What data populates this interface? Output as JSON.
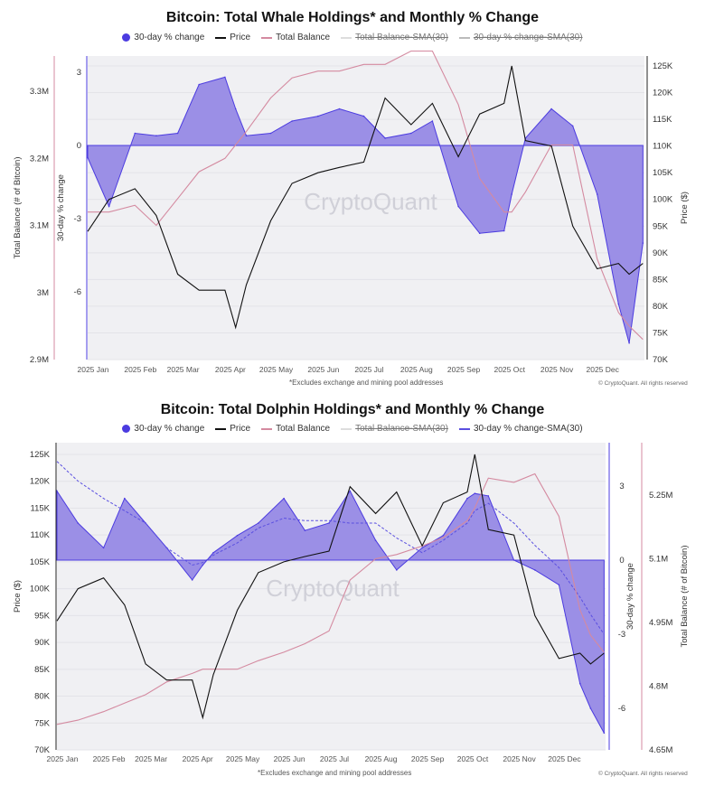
{
  "colors": {
    "pct_fill": "#9b8fe6",
    "pct_line": "#4b3be0",
    "price": "#111111",
    "balance": "#d48aa0",
    "sma": "#5a4fe0",
    "bg": "#f0f0f3"
  },
  "watermark": "CryptoQuant",
  "chart_data": [
    {
      "type": "area+line",
      "title": "Bitcoin: Total Whale Holdings* and Monthly % Change",
      "legend": [
        "30-day % change",
        "Price",
        "Total Balance",
        "Total Balance-SMA(30)",
        "30-day % change-SMA(30)"
      ],
      "legend_hidden": [
        "Total Balance-SMA(30)",
        "30-day % change-SMA(30)"
      ],
      "footnote": "*Excludes exchange and mining pool addresses",
      "copyright": "© CryptoQuant. All rights reserved",
      "x_ticks": [
        "2025 Jan",
        "2025 Feb",
        "2025 Mar",
        "2025 Apr",
        "2025 May",
        "2025 Jun",
        "2025 Jul",
        "2025 Aug",
        "2025 Sep",
        "2025 Oct",
        "2025 Nov",
        "2025 Dec"
      ],
      "pct_axis": {
        "label": "30-day % change",
        "ticks": [
          "3",
          "0",
          "-3",
          "-6"
        ],
        "range": [
          -8.6,
          3.7
        ]
      },
      "price_axis": {
        "label": "Price ($)",
        "ticks": [
          "125K",
          "120K",
          "115K",
          "110K",
          "105K",
          "100K",
          "95K",
          "90K",
          "85K",
          "80K",
          "75K",
          "70K"
        ],
        "range": [
          70000,
          125900
        ]
      },
      "balance_axis": {
        "label": "Total Balance (# of Bitcoin)",
        "ticks": [
          "3.3M",
          "3.2M",
          "3.1M",
          "3M",
          "2.9M"
        ],
        "range": [
          2900000,
          3340000
        ]
      },
      "dates": [
        "2025-01-01",
        "2025-01-15",
        "2025-02-01",
        "2025-02-15",
        "2025-03-01",
        "2025-03-15",
        "2025-04-01",
        "2025-04-08",
        "2025-04-15",
        "2025-05-01",
        "2025-05-15",
        "2025-06-01",
        "2025-06-15",
        "2025-07-01",
        "2025-07-15",
        "2025-08-01",
        "2025-08-15",
        "2025-09-01",
        "2025-09-15",
        "2025-10-01",
        "2025-10-06",
        "2025-10-15",
        "2025-11-01",
        "2025-11-15",
        "2025-12-01",
        "2025-12-15",
        "2025-12-22",
        "2025-12-31"
      ],
      "pct_change": [
        -0.5,
        -2.5,
        0.5,
        0.4,
        0.5,
        2.5,
        2.8,
        1.5,
        0.4,
        0.5,
        1,
        1.2,
        1.5,
        1.2,
        0.3,
        0.5,
        1,
        -2.5,
        -3.6,
        -3.5,
        -2,
        0.3,
        1.5,
        0.8,
        -2,
        -6.5,
        -8.1,
        -4
      ],
      "price": [
        94000,
        100000,
        102000,
        97000,
        86000,
        83000,
        83000,
        76000,
        84000,
        96000,
        103000,
        105000,
        106000,
        107000,
        119000,
        114000,
        118000,
        108000,
        116000,
        118000,
        125000,
        111000,
        110000,
        95000,
        87000,
        88000,
        86000,
        88000
      ],
      "total_balance": [
        3120000,
        3120000,
        3130000,
        3100000,
        3140000,
        3180000,
        3200000,
        3220000,
        3240000,
        3290000,
        3320000,
        3330000,
        3330000,
        3340000,
        3340000,
        3360000,
        3360000,
        3280000,
        3170000,
        3120000,
        3120000,
        3150000,
        3220000,
        3220000,
        3050000,
        2970000,
        2950000,
        2930000
      ]
    },
    {
      "type": "area+line",
      "title": "Bitcoin: Total Dolphin Holdings* and Monthly % Change",
      "legend": [
        "30-day % change",
        "Price",
        "Total Balance",
        "Total Balance-SMA(30)",
        "30-day % change-SMA(30)"
      ],
      "legend_hidden": [
        "Total Balance-SMA(30)"
      ],
      "footnote": "*Excludes exchange and mining pool addresses",
      "copyright": "© CryptoQuant. All rights reserved",
      "x_ticks": [
        "2025 Jan",
        "2025 Feb",
        "2025 Mar",
        "2025 Apr",
        "2025 May",
        "2025 Jun",
        "2025 Jul",
        "2025 Aug",
        "2025 Sep",
        "2025 Oct",
        "2025 Nov",
        "2025 Dec"
      ],
      "pct_axis": {
        "label": "30-day % change",
        "ticks": [
          "3",
          "0",
          "-3",
          "-6"
        ],
        "range": [
          -7.6,
          4.8
        ]
      },
      "price_axis": {
        "label": "Price ($)",
        "ticks": [
          "125K",
          "120K",
          "115K",
          "110K",
          "105K",
          "100K",
          "95K",
          "90K",
          "85K",
          "80K",
          "75K",
          "70K"
        ],
        "range": [
          70000,
          127000
        ]
      },
      "balance_axis": {
        "label": "Total Balance (# of Bitcoin)",
        "ticks": [
          "5.25M",
          "5.1M",
          "4.95M",
          "4.8M",
          "4.65M"
        ],
        "range": [
          4650000,
          5250000
        ]
      },
      "dates": [
        "2025-01-01",
        "2025-01-15",
        "2025-02-01",
        "2025-02-15",
        "2025-03-01",
        "2025-03-15",
        "2025-04-01",
        "2025-04-08",
        "2025-04-15",
        "2025-05-01",
        "2025-05-15",
        "2025-06-01",
        "2025-06-15",
        "2025-07-01",
        "2025-07-15",
        "2025-08-01",
        "2025-08-15",
        "2025-09-01",
        "2025-09-15",
        "2025-10-01",
        "2025-10-06",
        "2025-10-15",
        "2025-11-01",
        "2025-11-15",
        "2025-12-01",
        "2025-12-15",
        "2025-12-22",
        "2025-12-31"
      ],
      "pct_change": [
        2.8,
        1.5,
        0.5,
        2.5,
        1.5,
        0.5,
        -0.8,
        -0.2,
        0.3,
        1,
        1.5,
        2.5,
        1.2,
        1.5,
        2.8,
        0.8,
        -0.4,
        0.5,
        1,
        2.5,
        2.7,
        2.6,
        0,
        -0.4,
        -1,
        -5,
        -6,
        -7
      ],
      "pct_change_sma": [
        4,
        3.2,
        2.5,
        2,
        1.5,
        0.5,
        -0.2,
        -0.1,
        0.2,
        0.7,
        1.3,
        1.7,
        1.6,
        1.6,
        1.5,
        1.5,
        0.9,
        0.3,
        0.8,
        1.5,
        2,
        2.3,
        1.5,
        0.6,
        -0.3,
        -1.5,
        -2.2,
        -3
      ],
      "price": [
        94000,
        100000,
        102000,
        97000,
        86000,
        83000,
        83000,
        76000,
        84000,
        96000,
        103000,
        105000,
        106000,
        107000,
        119000,
        114000,
        118000,
        108000,
        116000,
        118000,
        125000,
        111000,
        110000,
        95000,
        87000,
        88000,
        86000,
        88000
      ],
      "total_balance": [
        4710000,
        4720000,
        4740000,
        4760000,
        4780000,
        4810000,
        4830000,
        4840000,
        4840000,
        4840000,
        4860000,
        4880000,
        4900000,
        4930000,
        5050000,
        5100000,
        5110000,
        5130000,
        5150000,
        5190000,
        5220000,
        5290000,
        5280000,
        5300000,
        5200000,
        4980000,
        4920000,
        4880000
      ]
    }
  ]
}
